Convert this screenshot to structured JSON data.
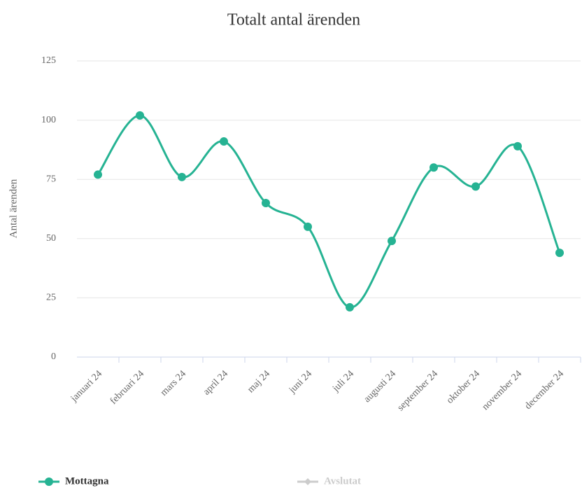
{
  "chart_data": {
    "type": "line",
    "title": "Totalt antal ärenden",
    "y_label": "Antal ärenden",
    "categories": [
      "januari 24",
      "februari 24",
      "mars 24",
      "april 24",
      "maj 24",
      "juni 24",
      "juli 24",
      "augusti 24",
      "september 24",
      "oktober 24",
      "november 24",
      "december 24"
    ],
    "series": [
      {
        "name": "Mottagna",
        "color": "#26b393",
        "visible": true,
        "values": [
          77,
          102,
          76,
          91,
          65,
          55,
          21,
          49,
          80,
          72,
          89,
          44
        ]
      },
      {
        "name": "Avslutat",
        "color": "#cccccc",
        "visible": false,
        "values": [
          null,
          null,
          null,
          null,
          null,
          null,
          null,
          null,
          null,
          null,
          null,
          null
        ]
      }
    ],
    "ylim": [
      0,
      125
    ],
    "yticks": [
      0,
      25,
      50,
      75,
      100,
      125
    ],
    "grid": true,
    "smooth": true
  }
}
